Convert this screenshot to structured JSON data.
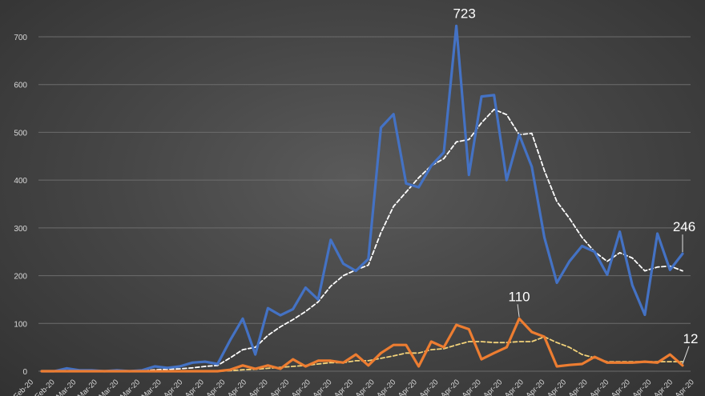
{
  "chart_data": {
    "type": "line",
    "title": "",
    "xlabel": "",
    "ylabel": "",
    "ylim": [
      0,
      700
    ],
    "yticks": [
      0,
      100,
      200,
      300,
      400,
      500,
      600,
      700
    ],
    "grid": true,
    "legend": "none",
    "x_tick_labels": [
      "Feb-20",
      "Feb-20",
      "Mar-20",
      "Mar-20",
      "Mar-20",
      "Mar-20",
      "Mar-20",
      "Apr-20",
      "Apr-20",
      "Apr-20",
      "Apr-20",
      "Apr-20",
      "Apr-20",
      "Apr-20",
      "Apr-20",
      "Apr-20",
      "Apr-20",
      "Apr-20",
      "Apr-20",
      "Apr-20",
      "Apr-20",
      "Apr-20",
      "Apr-20",
      "Apr-20",
      "Apr-20",
      "Apr-20",
      "Apr-20",
      "Apr-20",
      "Apr-20",
      "Apr-20",
      "Apr-20",
      "Apr-20"
    ],
    "series": [
      {
        "color": "#4472c4",
        "style": "solid",
        "values": [
          0,
          0,
          6,
          2,
          2,
          0,
          2,
          0,
          2,
          10,
          7,
          10,
          18,
          20,
          15,
          65,
          110,
          35,
          132,
          117,
          130,
          175,
          150,
          275,
          225,
          210,
          235,
          510,
          538,
          393,
          385,
          430,
          458,
          723,
          411,
          575,
          578,
          400,
          495,
          428,
          280,
          185,
          230,
          262,
          250,
          202,
          292,
          180,
          118,
          288,
          212,
          246
        ]
      },
      {
        "color": "#ffffff",
        "style": "dashed",
        "values": [
          0,
          0,
          1,
          1,
          1,
          1,
          1,
          1,
          1,
          3,
          4,
          5,
          7,
          10,
          12,
          28,
          45,
          50,
          75,
          93,
          108,
          125,
          145,
          178,
          200,
          212,
          222,
          290,
          345,
          375,
          405,
          430,
          445,
          480,
          485,
          520,
          548,
          537,
          495,
          498,
          420,
          355,
          320,
          280,
          250,
          230,
          248,
          237,
          210,
          218,
          220,
          210
        ]
      },
      {
        "color": "#ed7d31",
        "style": "solid",
        "values": [
          0,
          0,
          0,
          0,
          0,
          0,
          0,
          0,
          0,
          0,
          0,
          0,
          0,
          0,
          0,
          3,
          12,
          5,
          12,
          5,
          25,
          10,
          22,
          22,
          18,
          35,
          12,
          38,
          55,
          55,
          10,
          62,
          50,
          97,
          88,
          25,
          38,
          50,
          110,
          82,
          72,
          10,
          13,
          15,
          30,
          18,
          18,
          18,
          20,
          18,
          35,
          12
        ]
      },
      {
        "color": "#f2d27a",
        "style": "dashed",
        "values": [
          0,
          0,
          0,
          0,
          0,
          0,
          0,
          0,
          0,
          0,
          0,
          0,
          0,
          0,
          0,
          1,
          3,
          4,
          6,
          8,
          10,
          12,
          15,
          18,
          18,
          22,
          22,
          27,
          32,
          38,
          38,
          45,
          47,
          55,
          62,
          62,
          60,
          60,
          62,
          62,
          72,
          60,
          50,
          35,
          28,
          20,
          20,
          20,
          20,
          20,
          20,
          20
        ]
      }
    ],
    "data_labels": [
      {
        "series": 0,
        "index": 33,
        "text": "723"
      },
      {
        "series": 0,
        "index": 51,
        "text": "246"
      },
      {
        "series": 2,
        "index": 38,
        "text": "110"
      },
      {
        "series": 2,
        "index": 51,
        "text": "12"
      }
    ]
  }
}
